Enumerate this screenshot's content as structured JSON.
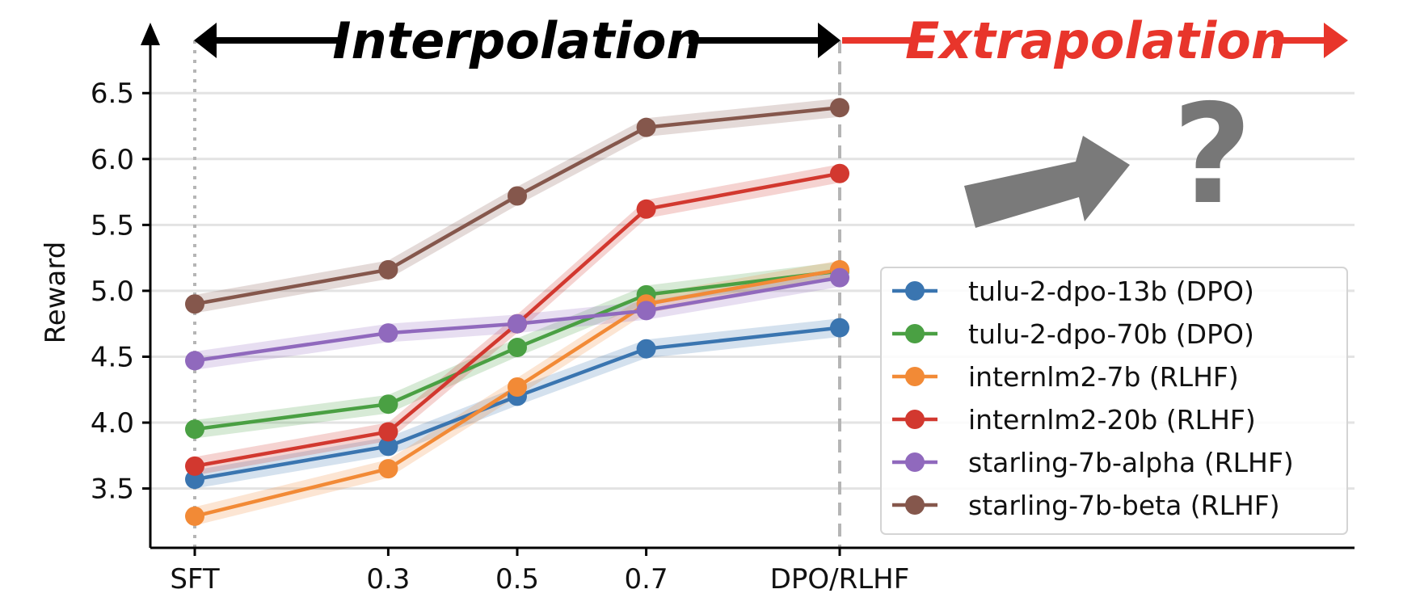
{
  "chart_data": {
    "type": "line",
    "title": "",
    "xlabel": "",
    "ylabel": "Reward",
    "x": [
      "SFT",
      "0.3",
      "0.5",
      "0.7",
      "DPO/RLHF"
    ],
    "x_positions": [
      0,
      0.3,
      0.5,
      0.7,
      1.0
    ],
    "ylim": [
      3.05,
      6.9
    ],
    "yticks": [
      "3.5",
      "4.0",
      "4.5",
      "5.0",
      "5.5",
      "6.0",
      "6.5"
    ],
    "grid": "horizontal",
    "legend_position": "bottom-right",
    "band_halfwidth": 0.07,
    "series": [
      {
        "name": "tulu-2-dpo-13b (DPO)",
        "color": "#3a75b0",
        "values": [
          3.57,
          3.82,
          4.2,
          4.56,
          4.72
        ]
      },
      {
        "name": "tulu-2-dpo-70b (DPO)",
        "color": "#4aa043",
        "values": [
          3.95,
          4.14,
          4.57,
          4.97,
          5.15
        ]
      },
      {
        "name": "internlm2-7b (RLHF)",
        "color": "#f28a36",
        "values": [
          3.29,
          3.65,
          4.27,
          4.9,
          5.16
        ]
      },
      {
        "name": "internlm2-20b (RLHF)",
        "color": "#d2382f",
        "values": [
          3.67,
          3.93,
          4.75,
          5.62,
          5.89
        ]
      },
      {
        "name": "starling-7b-alpha (RLHF)",
        "color": "#9069bd",
        "values": [
          4.47,
          4.68,
          4.75,
          4.85,
          5.1
        ]
      },
      {
        "name": "starling-7b-beta (RLHF)",
        "color": "#85574c",
        "values": [
          4.9,
          5.16,
          5.72,
          6.24,
          6.39
        ]
      }
    ],
    "annotations": {
      "interpolation": "Interpolation",
      "extrapolation": "Extrapolation",
      "question_mark": "?"
    },
    "colors": {
      "interpolation": "#000000",
      "extrapolation": "#e8352b",
      "arrow_gray": "#7a7a7a"
    }
  }
}
